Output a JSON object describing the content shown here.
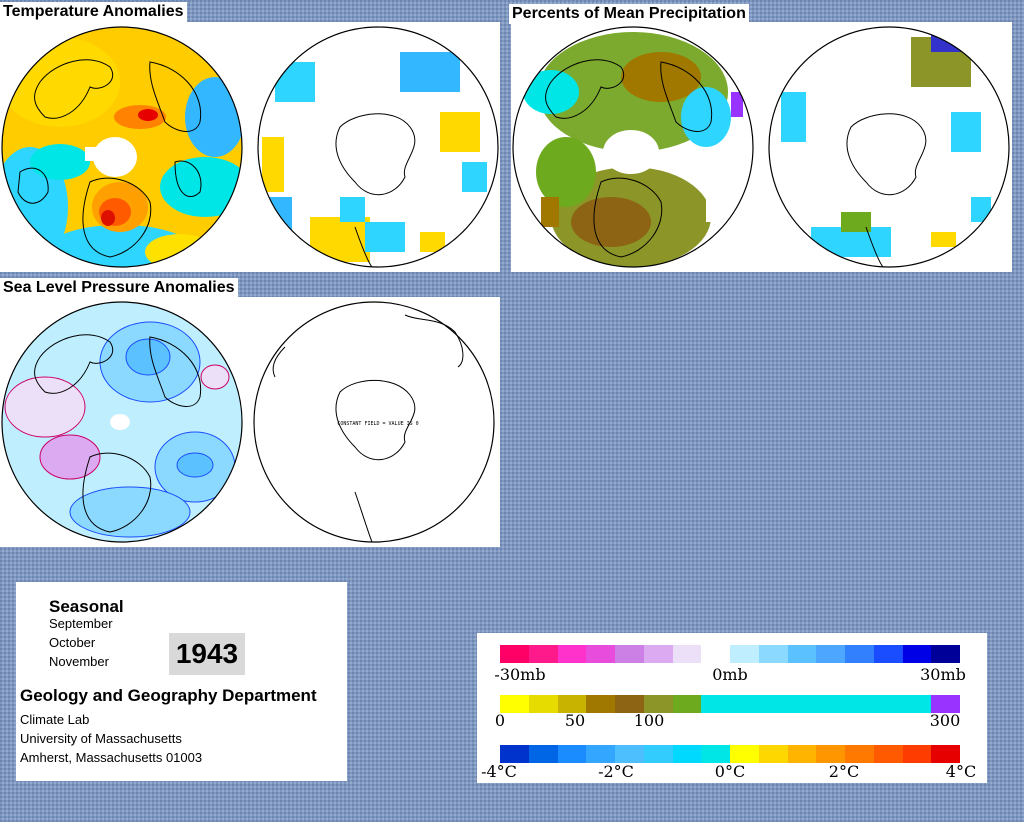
{
  "panels": {
    "temperature": {
      "title": "Temperature Anomalies"
    },
    "precipitation": {
      "title": "Percents of Mean Precipitation"
    },
    "pressure": {
      "title": "Sea Level Pressure Anomalies",
      "south_note": "CONSTANT FIELD = VALUE IS 0"
    }
  },
  "info": {
    "season_label": "Seasonal",
    "months": [
      "September",
      "October",
      "November"
    ],
    "year": "1943",
    "department": "Geology and Geography Department",
    "address": [
      "Climate Lab",
      "University of Massachusetts",
      "Amherst, Massachusetts 01003"
    ]
  },
  "legend": {
    "pressure": {
      "colors": [
        "#ff0066",
        "#ff1a8c",
        "#ff33cc",
        "#e84cdc",
        "#cc80e6",
        "#dcaaf0",
        "#ece0f8",
        "#ffffff",
        "#bfefff",
        "#8cd9ff",
        "#5cc2ff",
        "#4da6ff",
        "#3380ff",
        "#1a4dff",
        "#0000e6",
        "#000099"
      ],
      "labels": [
        "-30mb",
        "0mb",
        "30mb"
      ]
    },
    "precipitation": {
      "colors": [
        "#ffff00",
        "#e6dc00",
        "#c8b400",
        "#a07800",
        "#8c6414",
        "#8c9628",
        "#6eaa1e",
        "#00e6e6",
        "#00e6e6",
        "#00e6e6",
        "#00e6e6",
        "#00e6e6",
        "#00e6e6",
        "#00e6e6",
        "#00e6e6",
        "#9933ff"
      ],
      "labels": [
        "0",
        "50",
        "100",
        "300"
      ]
    },
    "temperature": {
      "colors": [
        "#0033cc",
        "#0066e6",
        "#1a8cff",
        "#33a6ff",
        "#4dbfff",
        "#33ccff",
        "#00d9ff",
        "#00e6e6",
        "#ffff00",
        "#ffd700",
        "#ffb400",
        "#ff9600",
        "#ff7800",
        "#ff5a00",
        "#ff3c00",
        "#e60000"
      ],
      "labels": [
        "-4°C",
        "-2°C",
        "0°C",
        "2°C",
        "4°C"
      ]
    }
  }
}
